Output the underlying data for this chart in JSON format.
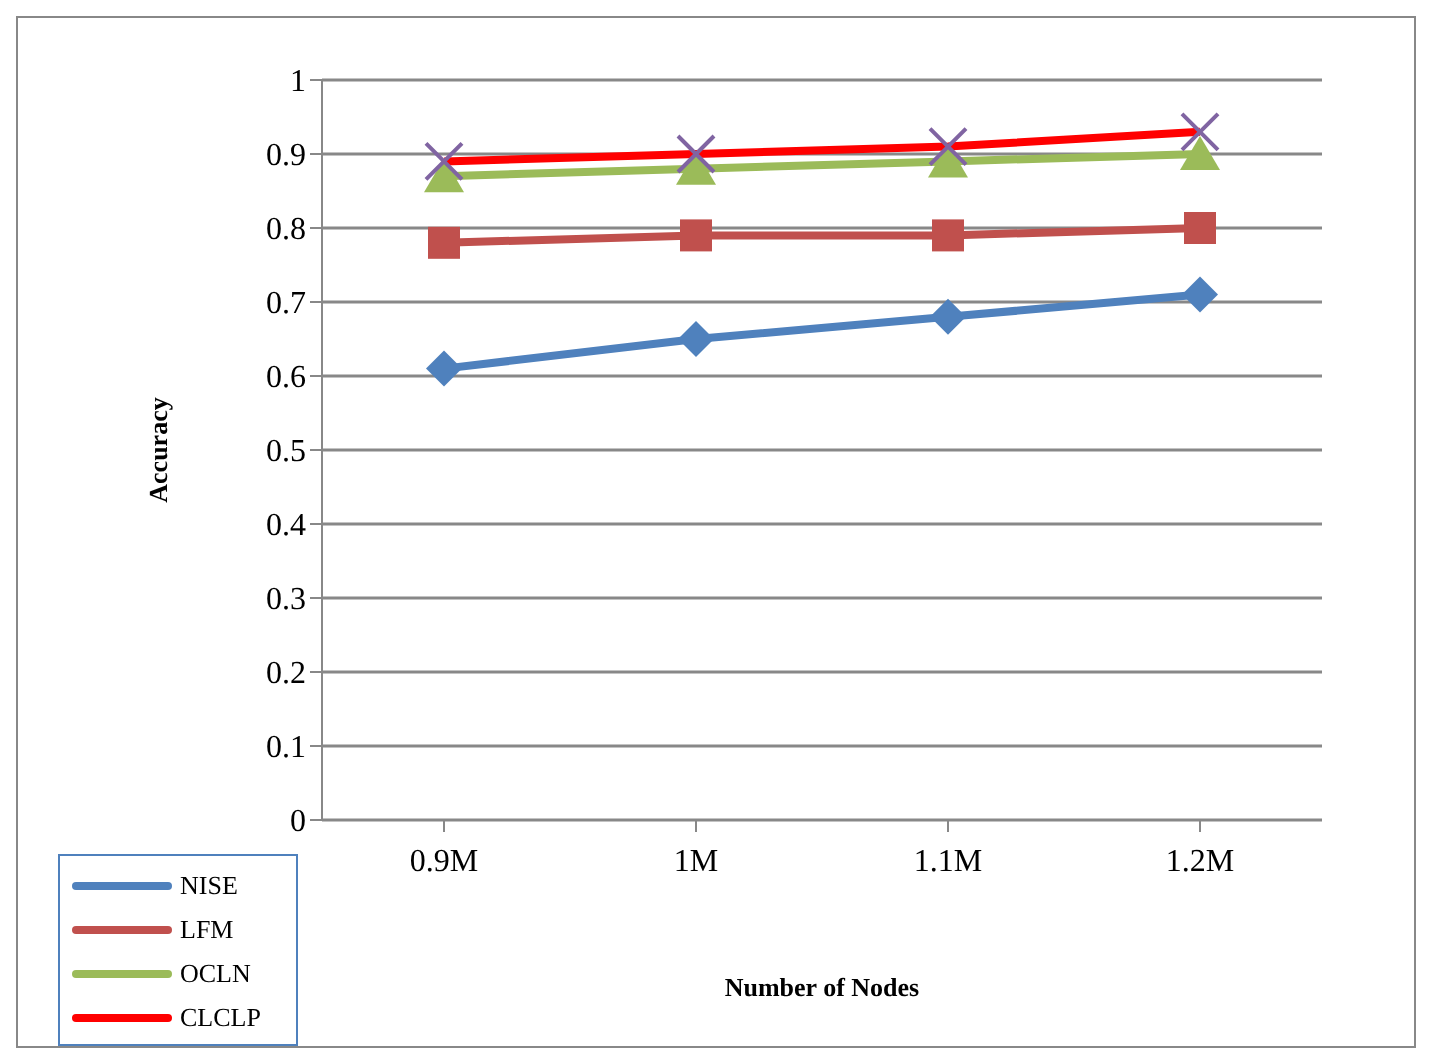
{
  "chart_data": {
    "type": "line",
    "xlabel": "Number of Nodes",
    "ylabel": "Accuracy",
    "categories": [
      "0.9M",
      "1M",
      "1.1M",
      "1.2M"
    ],
    "series": [
      {
        "name": "NISE",
        "color": "#4f81bd",
        "marker": "diamond",
        "values": [
          0.61,
          0.65,
          0.68,
          0.71
        ]
      },
      {
        "name": "LFM",
        "color": "#c0504d",
        "marker": "square",
        "values": [
          0.78,
          0.79,
          0.79,
          0.8
        ]
      },
      {
        "name": "OCLN",
        "color": "#9bbb59",
        "marker": "triangle",
        "values": [
          0.87,
          0.88,
          0.89,
          0.9
        ]
      },
      {
        "name": "CLCLP",
        "color": "#ff0000",
        "marker": "cross",
        "values": [
          0.89,
          0.9,
          0.91,
          0.93
        ]
      }
    ],
    "ylim": [
      0,
      1
    ],
    "yticks": [
      0,
      0.1,
      0.2,
      0.3,
      0.4,
      0.5,
      0.6,
      0.7,
      0.8,
      0.9,
      1
    ],
    "grid": "y",
    "legend": "bottom left"
  }
}
